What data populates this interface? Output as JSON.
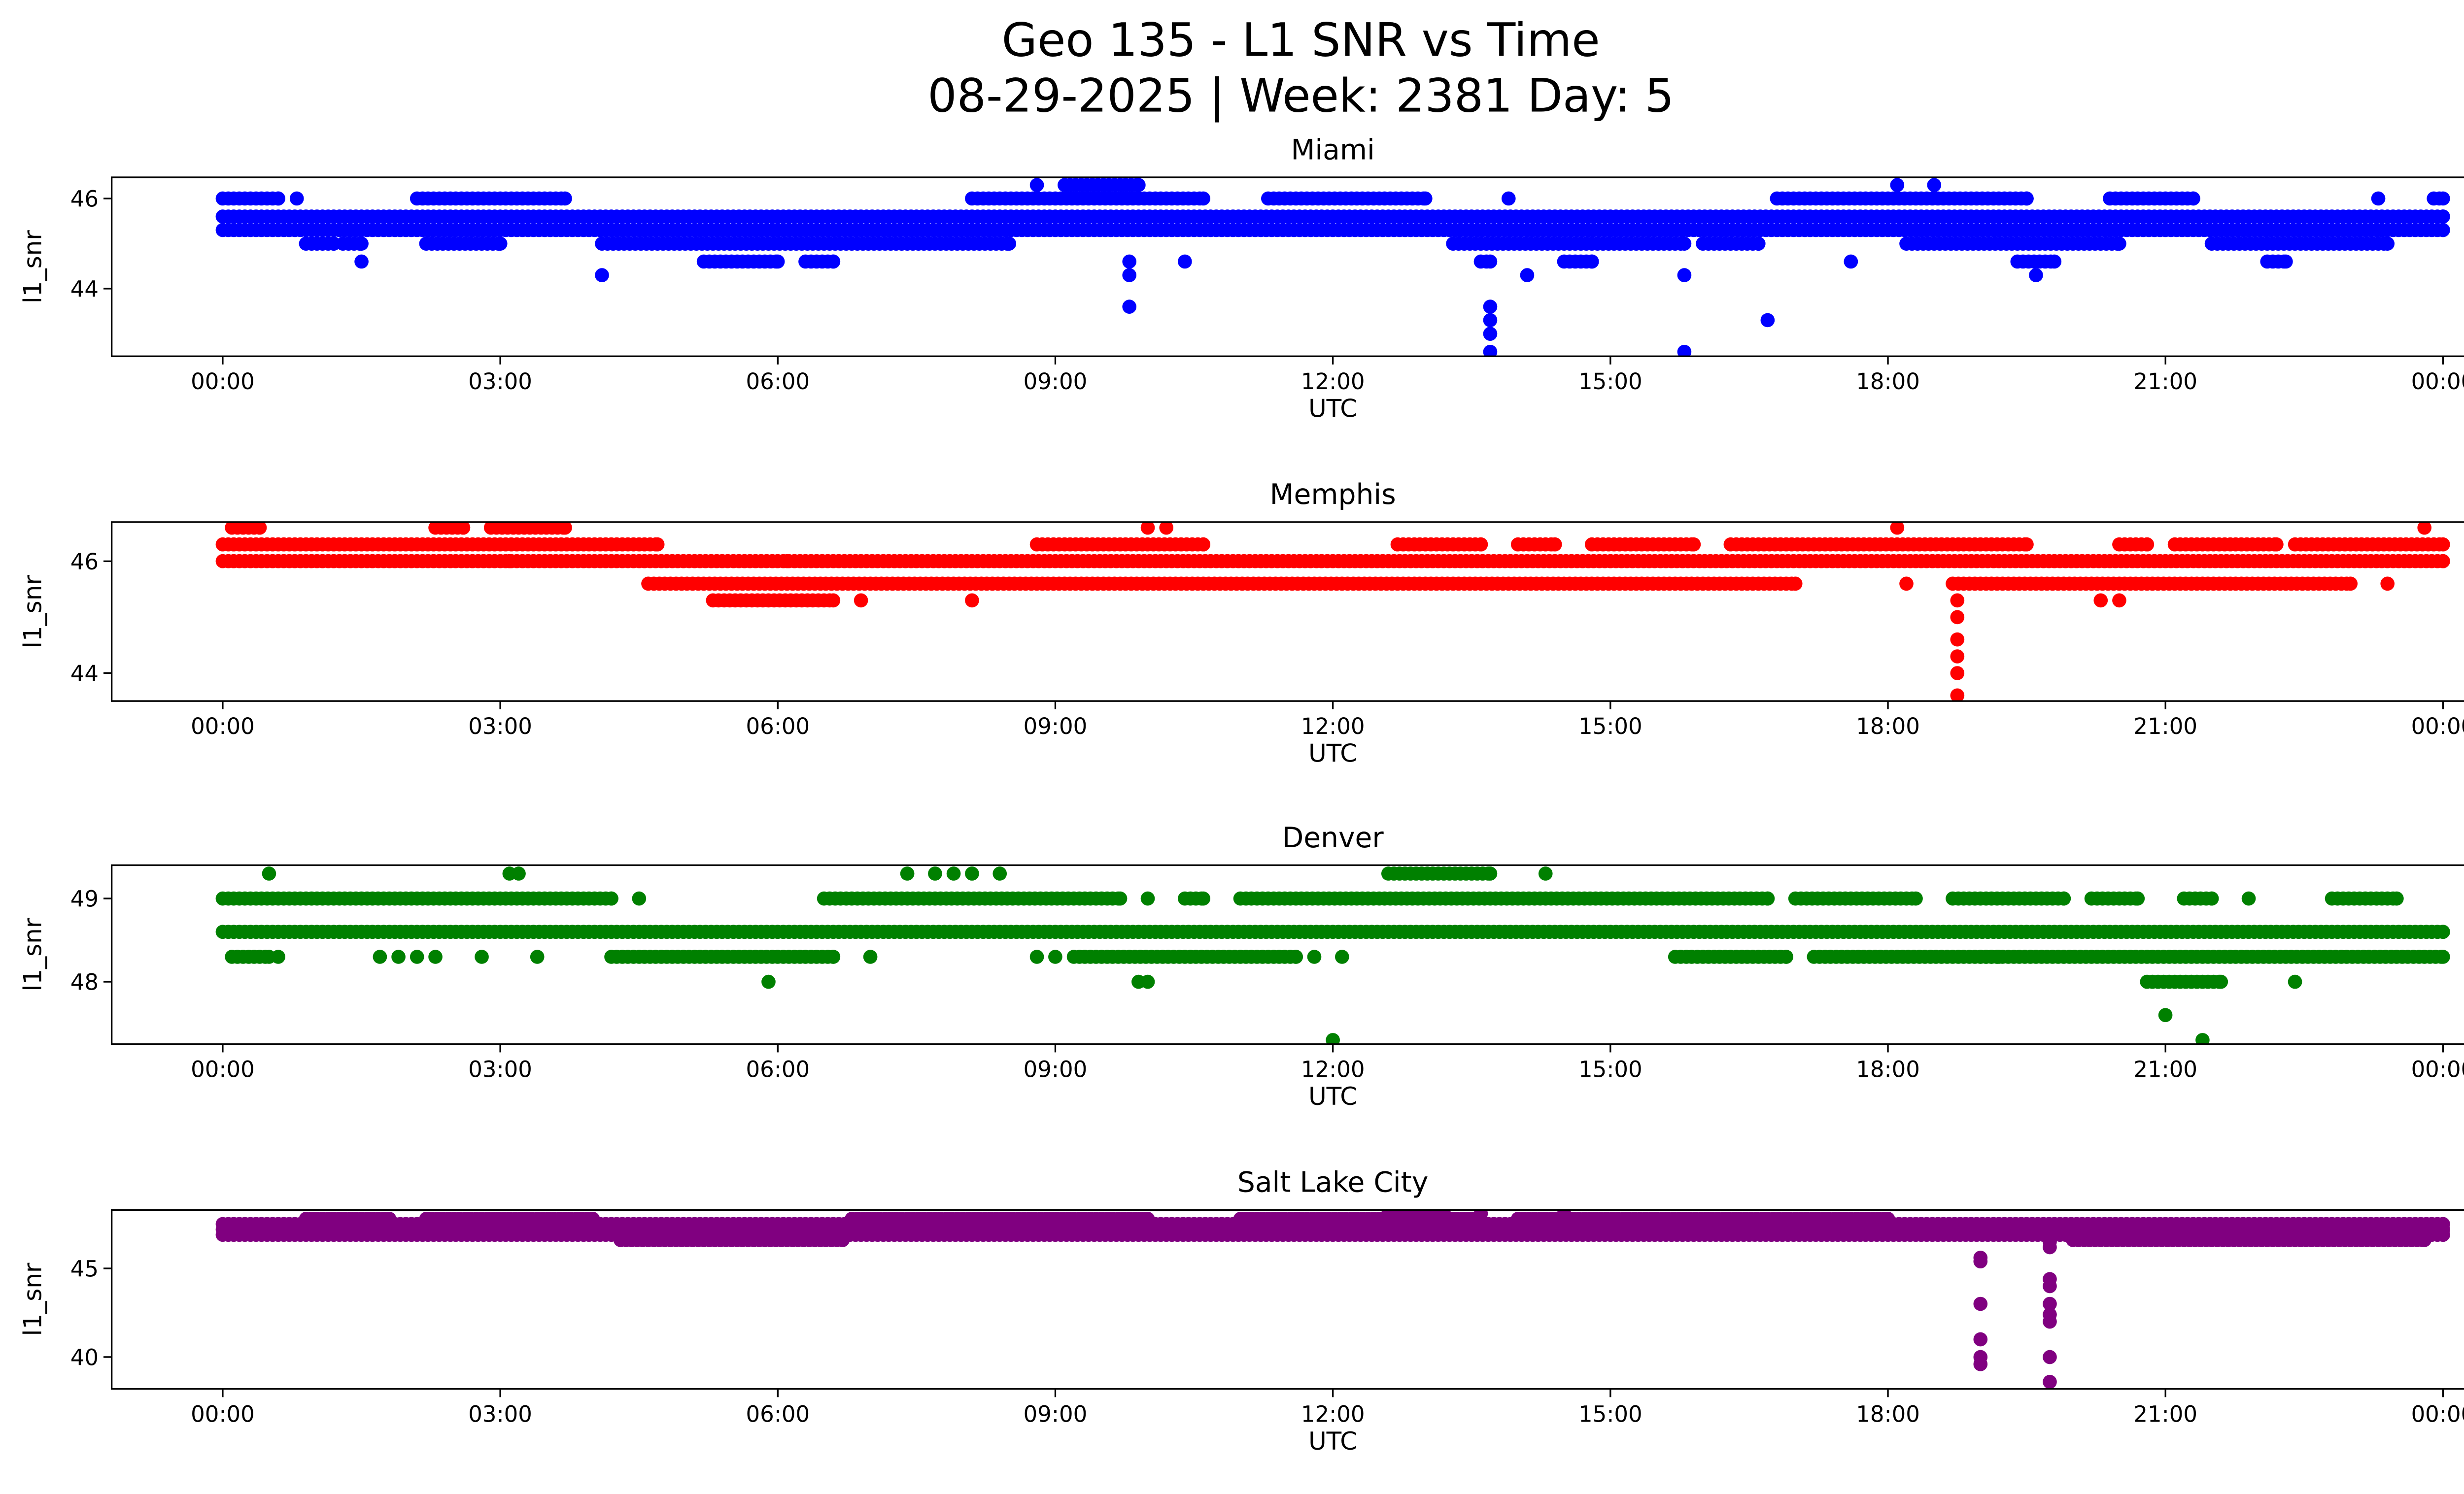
{
  "chart_data": {
    "type": "scatter",
    "title_line1": "Geo 135 - L1 SNR vs Time",
    "title_line2": "08-29-2025 | Week: 2381 Day: 5",
    "xlabel": "UTC",
    "ylabel": "l1_snr",
    "x_ticks_hours": [
      0,
      3,
      6,
      9,
      12,
      15,
      18,
      21,
      24
    ],
    "x_tick_labels": [
      "00:00",
      "03:00",
      "06:00",
      "09:00",
      "12:00",
      "15:00",
      "18:00",
      "21:00",
      "00:00"
    ],
    "xlim_hours": [
      -1.2,
      25.2
    ],
    "panels": [
      {
        "title": "Miami",
        "color": "#0000ff",
        "ylim": [
          42.5,
          46.47
        ],
        "y_ticks": [
          44,
          46
        ],
        "levels": [
          {
            "value": 45.6,
            "ranges": [
              [
                0,
                24
              ]
            ]
          },
          {
            "value": 45.3,
            "ranges": [
              [
                0,
                24
              ]
            ]
          },
          {
            "value": 45.0,
            "ranges": [
              [
                0.9,
                1.2
              ],
              [
                1.3,
                1.5
              ],
              [
                2.2,
                3.0
              ],
              [
                4.1,
                8.5
              ],
              [
                13.3,
                15.8
              ],
              [
                16.0,
                16.6
              ],
              [
                18.2,
                20.5
              ],
              [
                21.5,
                23.4
              ]
            ]
          },
          {
            "value": 46.0,
            "ranges": [
              [
                0,
                0.6
              ],
              [
                2.1,
                3.7
              ],
              [
                8.1,
                10.6
              ],
              [
                11.3,
                13.0
              ],
              [
                16.8,
                19.5
              ],
              [
                20.4,
                21.3
              ],
              [
                23.9,
                24
              ]
            ]
          },
          {
            "value": 46.3,
            "ranges": [
              [
                9.1,
                9.9
              ]
            ]
          },
          {
            "value": 44.6,
            "ranges": [
              [
                5.2,
                6.0
              ],
              [
                6.3,
                6.6
              ],
              [
                13.6,
                13.7
              ],
              [
                14.5,
                14.8
              ],
              [
                19.4,
                19.8
              ],
              [
                22.1,
                22.3
              ]
            ]
          }
        ],
        "points": [
          [
            0.8,
            46.0
          ],
          [
            8.8,
            46.3
          ],
          [
            18.1,
            46.3
          ],
          [
            18.5,
            46.3
          ],
          [
            1.5,
            44.6
          ],
          [
            10.4,
            44.6
          ],
          [
            17.6,
            44.6
          ],
          [
            9.8,
            44.6
          ],
          [
            4.1,
            44.3
          ],
          [
            9.8,
            44.3
          ],
          [
            9.8,
            43.6
          ],
          [
            13.7,
            43.6
          ],
          [
            13.7,
            43.3
          ],
          [
            13.7,
            43.0
          ],
          [
            13.7,
            42.6
          ],
          [
            14.1,
            44.3
          ],
          [
            15.8,
            44.3
          ],
          [
            15.8,
            42.6
          ],
          [
            16.7,
            43.3
          ],
          [
            19.6,
            44.3
          ],
          [
            23.3,
            46.0
          ],
          [
            13.9,
            46.0
          ]
        ]
      },
      {
        "title": "Memphis",
        "color": "#ff0000",
        "ylim": [
          43.5,
          46.7
        ],
        "y_ticks": [
          44,
          46
        ],
        "levels": [
          {
            "value": 46.0,
            "ranges": [
              [
                0,
                24
              ]
            ]
          },
          {
            "value": 46.3,
            "ranges": [
              [
                0,
                4.7
              ],
              [
                8.8,
                10.6
              ],
              [
                12.7,
                13.6
              ],
              [
                14.0,
                14.4
              ],
              [
                14.8,
                15.9
              ],
              [
                16.3,
                19.5
              ],
              [
                20.5,
                20.8
              ],
              [
                21.1,
                22.2
              ],
              [
                22.4,
                24
              ]
            ]
          },
          {
            "value": 45.6,
            "ranges": [
              [
                4.6,
                17.0
              ],
              [
                18.7,
                23.0
              ]
            ]
          },
          {
            "value": 45.3,
            "ranges": [
              [
                5.3,
                6.6
              ]
            ]
          },
          {
            "value": 46.6,
            "ranges": [
              [
                0.1,
                0.4
              ],
              [
                2.3,
                2.6
              ],
              [
                2.9,
                3.7
              ]
            ]
          }
        ],
        "points": [
          [
            18.2,
            45.6
          ],
          [
            23.4,
            45.6
          ],
          [
            6.9,
            45.3
          ],
          [
            8.1,
            45.3
          ],
          [
            20.3,
            45.3
          ],
          [
            20.5,
            45.3
          ],
          [
            10.0,
            46.6
          ],
          [
            10.2,
            46.6
          ],
          [
            18.1,
            46.6
          ],
          [
            23.8,
            46.6
          ],
          [
            18.75,
            45.3
          ],
          [
            18.75,
            45.0
          ],
          [
            18.75,
            44.6
          ],
          [
            18.75,
            44.3
          ],
          [
            18.75,
            44.0
          ],
          [
            18.75,
            43.6
          ],
          [
            3.1,
            46.0
          ],
          [
            6.1,
            46.0
          ]
        ]
      },
      {
        "title": "Denver",
        "color": "#008000",
        "ylim": [
          47.25,
          49.4
        ],
        "y_ticks": [
          48,
          49
        ],
        "levels": [
          {
            "value": 48.6,
            "ranges": [
              [
                0,
                24
              ]
            ]
          },
          {
            "value": 49.0,
            "ranges": [
              [
                0,
                4.2
              ],
              [
                6.5,
                9.7
              ],
              [
                10.4,
                10.6
              ],
              [
                11.0,
                16.7
              ],
              [
                17.0,
                18.3
              ],
              [
                18.7,
                19.9
              ],
              [
                20.2,
                20.7
              ],
              [
                21.2,
                21.5
              ],
              [
                22.8,
                23.5
              ]
            ]
          },
          {
            "value": 48.3,
            "ranges": [
              [
                0.1,
                0.5
              ],
              [
                4.2,
                6.6
              ],
              [
                9.2,
                11.6
              ],
              [
                15.7,
                16.9
              ],
              [
                17.2,
                19.2
              ],
              [
                19.0,
                24
              ]
            ]
          },
          {
            "value": 49.3,
            "ranges": [
              [
                12.6,
                13.7
              ]
            ]
          },
          {
            "value": 48.0,
            "ranges": [
              [
                20.8,
                21.6
              ]
            ]
          }
        ],
        "points": [
          [
            4.5,
            49.0
          ],
          [
            10.0,
            49.0
          ],
          [
            21.9,
            49.0
          ],
          [
            0.6,
            48.3
          ],
          [
            1.7,
            48.3
          ],
          [
            1.9,
            48.3
          ],
          [
            2.1,
            48.3
          ],
          [
            2.3,
            48.3
          ],
          [
            2.8,
            48.3
          ],
          [
            3.4,
            48.3
          ],
          [
            7.0,
            48.3
          ],
          [
            8.8,
            48.3
          ],
          [
            9.0,
            48.3
          ],
          [
            11.8,
            48.3
          ],
          [
            12.1,
            48.3
          ],
          [
            0.5,
            49.3
          ],
          [
            3.1,
            49.3
          ],
          [
            3.2,
            49.3
          ],
          [
            7.4,
            49.3
          ],
          [
            7.7,
            49.3
          ],
          [
            7.9,
            49.3
          ],
          [
            8.1,
            49.3
          ],
          [
            8.4,
            49.3
          ],
          [
            14.3,
            49.3
          ],
          [
            5.9,
            48.0
          ],
          [
            9.9,
            48.0
          ],
          [
            10.0,
            48.0
          ],
          [
            22.4,
            48.0
          ],
          [
            12.0,
            47.3
          ],
          [
            21.0,
            47.6
          ],
          [
            21.4,
            47.3
          ]
        ]
      },
      {
        "title": "Salt Lake City",
        "color": "#800080",
        "ylim": [
          38.2,
          48.3
        ],
        "y_ticks": [
          40,
          45
        ],
        "levels": [
          {
            "value": 47.2,
            "ranges": [
              [
                0,
                24
              ]
            ]
          },
          {
            "value": 46.9,
            "ranges": [
              [
                0,
                24
              ]
            ]
          },
          {
            "value": 47.5,
            "ranges": [
              [
                0,
                24
              ]
            ]
          },
          {
            "value": 47.8,
            "ranges": [
              [
                0.9,
                1.8
              ],
              [
                2.2,
                4.0
              ],
              [
                6.8,
                10.0
              ],
              [
                11.0,
                13.5
              ],
              [
                14.0,
                18.0
              ]
            ]
          },
          {
            "value": 46.6,
            "ranges": [
              [
                4.3,
                6.7
              ],
              [
                20.0,
                23.8
              ]
            ]
          },
          {
            "value": 48.1,
            "ranges": [
              [
                12.6,
                13.2
              ]
            ]
          }
        ],
        "points": [
          [
            19.0,
            45.6
          ],
          [
            19.0,
            45.4
          ],
          [
            19.0,
            43.0
          ],
          [
            19.0,
            41.0
          ],
          [
            19.0,
            40.0
          ],
          [
            19.0,
            39.6
          ],
          [
            19.75,
            46.2
          ],
          [
            19.75,
            46.5
          ],
          [
            19.75,
            44.4
          ],
          [
            19.75,
            44.0
          ],
          [
            19.75,
            43.0
          ],
          [
            19.75,
            42.4
          ],
          [
            19.75,
            42.0
          ],
          [
            19.75,
            40.0
          ],
          [
            19.75,
            38.6
          ],
          [
            13.6,
            48.1
          ],
          [
            14.5,
            48.1
          ]
        ]
      }
    ]
  }
}
